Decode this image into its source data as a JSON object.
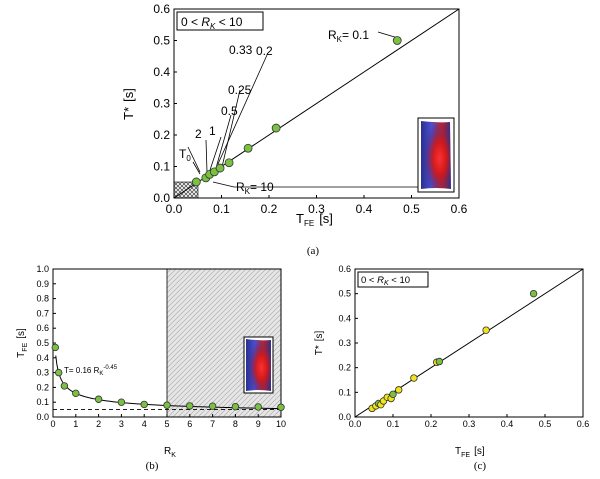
{
  "colors": {
    "green_marker": "#7ac142",
    "yellow_marker": "#f2e41b",
    "hatch": "#9a9a9a",
    "line": "#000000"
  },
  "chart_data": [
    {
      "id": "a",
      "caption": "(a)",
      "type": "scatter",
      "xlabel": "T",
      "xlabel_sub": "FE",
      "xlabel_unit": "[s]",
      "ylabel": "T*",
      "ylabel_unit": "[s]",
      "xlim": [
        0,
        0.6
      ],
      "ylim": [
        0,
        0.6
      ],
      "x_ticks": [
        "0.0",
        "0.1",
        "0.2",
        "0.3",
        "0.4",
        "0.5",
        "0.6"
      ],
      "y_ticks": [
        "0.0",
        "0.1",
        "0.2",
        "0.3",
        "0.4",
        "0.5",
        "0.6"
      ],
      "legend": {
        "pre": "0 < ",
        "var": "R",
        "sub": "K",
        "post": " < 10"
      },
      "reference_line": "y = x",
      "marker_color": "green",
      "points": [
        {
          "x": 0.047,
          "y": 0.051
        },
        {
          "x": 0.067,
          "y": 0.064
        },
        {
          "x": 0.075,
          "y": 0.075
        },
        {
          "x": 0.085,
          "y": 0.083
        },
        {
          "x": 0.097,
          "y": 0.095
        },
        {
          "x": 0.116,
          "y": 0.112
        },
        {
          "x": 0.156,
          "y": 0.158
        },
        {
          "x": 0.215,
          "y": 0.222
        },
        {
          "x": 0.47,
          "y": 0.5
        }
      ],
      "labels": {
        "rk01_pre": "R",
        "rk01_sub": "K",
        "rk01_post": "= 0.1",
        "l02": "0.2",
        "l025": "0.25",
        "l033": "0.33",
        "l05": "0.5",
        "l1": "1",
        "l2": "2",
        "t0": "T",
        "t0_sub": "0",
        "rk10_pre": "R",
        "rk10_sub": "K",
        "rk10_post": "= 10"
      },
      "shaded_region": {
        "x": [
          0,
          0.05
        ],
        "y": [
          0,
          0.05
        ]
      }
    },
    {
      "id": "b",
      "caption": "(b)",
      "type": "scatter",
      "xlabel": "R",
      "xlabel_sub": "K",
      "ylabel": "T",
      "ylabel_sub": "FE",
      "ylabel_unit": "[s]",
      "xlim": [
        0,
        10
      ],
      "ylim": [
        0,
        1.0
      ],
      "x_ticks": [
        "0",
        "1",
        "2",
        "3",
        "4",
        "5",
        "6",
        "7",
        "8",
        "9",
        "10"
      ],
      "y_ticks": [
        "0.0",
        "0.1",
        "0.2",
        "0.3",
        "0.4",
        "0.5",
        "0.6",
        "0.7",
        "0.8",
        "0.9",
        "1.0"
      ],
      "fit": {
        "label": "T= 0.16 R",
        "label_sub": "K",
        "label_sup": "-0.45",
        "a": 0.16,
        "b": -0.45
      },
      "dashed_level": 0.05,
      "shaded_region": {
        "x": [
          5,
          10
        ]
      },
      "marker_color": "green",
      "points": [
        {
          "x": 0.1,
          "y": 0.47
        },
        {
          "x": 0.25,
          "y": 0.3
        },
        {
          "x": 0.5,
          "y": 0.21
        },
        {
          "x": 1,
          "y": 0.16
        },
        {
          "x": 2,
          "y": 0.12
        },
        {
          "x": 3,
          "y": 0.1
        },
        {
          "x": 4,
          "y": 0.085
        },
        {
          "x": 5,
          "y": 0.08
        },
        {
          "x": 6,
          "y": 0.075
        },
        {
          "x": 7,
          "y": 0.073
        },
        {
          "x": 8,
          "y": 0.07
        },
        {
          "x": 9,
          "y": 0.068
        },
        {
          "x": 10,
          "y": 0.066
        }
      ]
    },
    {
      "id": "c",
      "caption": "(c)",
      "type": "scatter",
      "xlabel": "T",
      "xlabel_sub": "FE",
      "xlabel_unit": "[s]",
      "ylabel": "T*",
      "ylabel_unit": "[s]",
      "xlim": [
        0,
        0.6
      ],
      "ylim": [
        0,
        0.6
      ],
      "x_ticks": [
        "0.0",
        "0.1",
        "0.2",
        "0.3",
        "0.4",
        "0.5",
        "0.6"
      ],
      "y_ticks": [
        "0.0",
        "0.1",
        "0.2",
        "0.3",
        "0.4",
        "0.5",
        "0.6"
      ],
      "legend": {
        "pre": "0 < ",
        "var": "R",
        "sub": "K",
        "post": " < 10"
      },
      "reference_line": "y = x",
      "points": [
        {
          "x": 0.045,
          "y": 0.035,
          "color": "yellow"
        },
        {
          "x": 0.055,
          "y": 0.045,
          "color": "yellow"
        },
        {
          "x": 0.062,
          "y": 0.055,
          "color": "green"
        },
        {
          "x": 0.068,
          "y": 0.05,
          "color": "yellow"
        },
        {
          "x": 0.075,
          "y": 0.065,
          "color": "yellow"
        },
        {
          "x": 0.085,
          "y": 0.08,
          "color": "yellow"
        },
        {
          "x": 0.095,
          "y": 0.075,
          "color": "yellow"
        },
        {
          "x": 0.1,
          "y": 0.092,
          "color": "green"
        },
        {
          "x": 0.115,
          "y": 0.11,
          "color": "yellow"
        },
        {
          "x": 0.155,
          "y": 0.158,
          "color": "yellow"
        },
        {
          "x": 0.215,
          "y": 0.222,
          "color": "yellow"
        },
        {
          "x": 0.222,
          "y": 0.225,
          "color": "green"
        },
        {
          "x": 0.345,
          "y": 0.352,
          "color": "yellow"
        },
        {
          "x": 0.47,
          "y": 0.5,
          "color": "green"
        }
      ]
    }
  ]
}
